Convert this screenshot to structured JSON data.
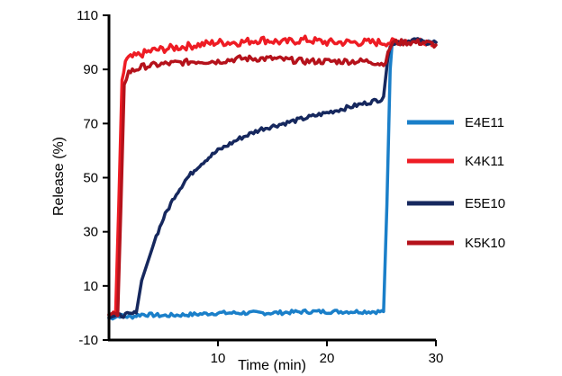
{
  "chart_data": {
    "type": "line",
    "title": "",
    "xlabel": "Time (min)",
    "ylabel": "Release (%)",
    "xlim": [
      0,
      30
    ],
    "ylim": [
      -10,
      110
    ],
    "xticks": [
      10,
      20,
      30
    ],
    "yticks": [
      -10,
      10,
      30,
      50,
      70,
      90,
      110
    ],
    "grid": false,
    "legend_position": "right",
    "series": [
      {
        "name": "E4E11",
        "color": "#1a7fc9",
        "x": [
          0,
          1,
          2,
          3,
          5,
          8,
          10,
          12,
          15,
          18,
          20,
          22,
          24,
          25.2,
          25.5,
          25.8,
          26,
          27,
          28,
          29,
          30
        ],
        "y": [
          -2,
          -1,
          -1.5,
          -0.5,
          -1,
          -0.5,
          0,
          0,
          0,
          0.5,
          0.5,
          0.5,
          0.5,
          0.5,
          40,
          90,
          100,
          100,
          101,
          100,
          100
        ],
        "noise": 0.7
      },
      {
        "name": "K4K11",
        "color": "#ee1c24",
        "x": [
          0,
          0.6,
          0.9,
          1.2,
          1.5,
          1.8,
          2.5,
          4,
          6,
          8,
          10,
          12,
          14,
          16,
          18,
          20,
          22,
          24,
          26,
          28,
          30
        ],
        "y": [
          -1,
          -1,
          40,
          85,
          93,
          94,
          95,
          97,
          98,
          99,
          100,
          100,
          101,
          100,
          101,
          100,
          100,
          100,
          100,
          101,
          100
        ],
        "noise": 1.4
      },
      {
        "name": "E5E10",
        "color": "#16285e",
        "x": [
          0,
          1,
          2,
          2.5,
          3,
          4,
          5,
          6,
          7,
          8,
          9,
          10,
          12,
          14,
          16,
          18,
          20,
          22,
          24,
          25,
          25.2,
          25.6,
          26,
          27,
          28,
          29,
          30
        ],
        "y": [
          -1,
          -1,
          -0.5,
          0,
          12,
          25,
          35,
          43,
          49,
          53.5,
          57,
          60,
          64.5,
          68,
          70,
          72,
          74,
          76,
          78,
          79,
          80,
          95,
          100,
          100,
          101,
          100,
          100
        ],
        "noise": 0.8
      },
      {
        "name": "K5K10",
        "color": "#b5121b",
        "x": [
          0,
          0.8,
          1.1,
          1.4,
          1.8,
          2.5,
          3,
          5,
          8,
          10,
          12,
          15,
          18,
          20,
          22,
          24,
          25,
          25.4,
          25.8,
          26,
          27,
          28,
          29,
          30
        ],
        "y": [
          -1,
          -1,
          40,
          85,
          89,
          90,
          91,
          92,
          93,
          93,
          94,
          94,
          93,
          93,
          93,
          93,
          92,
          93,
          98,
          100,
          100,
          100,
          100,
          99
        ],
        "noise": 1.1
      }
    ]
  }
}
